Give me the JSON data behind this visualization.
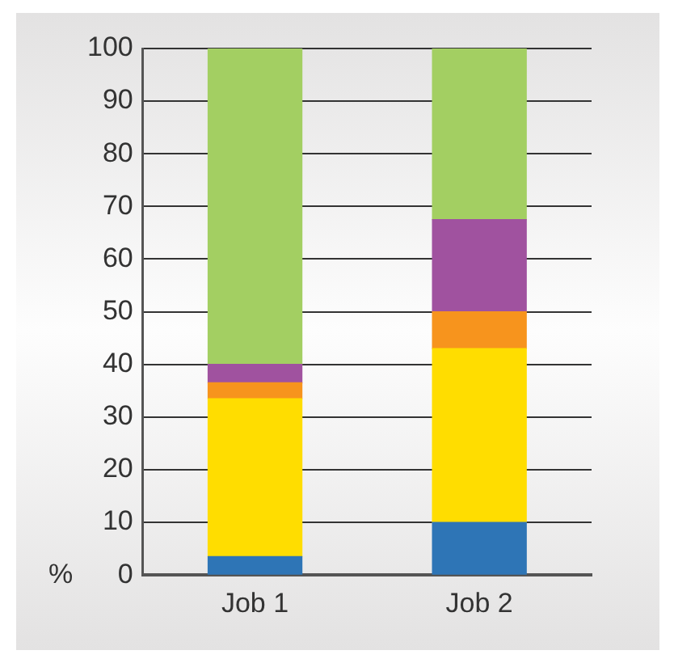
{
  "chart_data": {
    "type": "bar",
    "stacked": true,
    "ylabel": "%",
    "categories": [
      "Job 1",
      "Job 2"
    ],
    "series": [
      {
        "color": "#2e75b6",
        "values": [
          3.5,
          10
        ]
      },
      {
        "color": "#ffdd00",
        "values": [
          30,
          33
        ]
      },
      {
        "color": "#f7941d",
        "values": [
          3,
          7
        ]
      },
      {
        "color": "#a0529f",
        "values": [
          3.5,
          17.5
        ]
      },
      {
        "color": "#a3cf62",
        "values": [
          60,
          32.5
        ]
      }
    ],
    "ylim": [
      0,
      100
    ],
    "yticks": [
      0,
      10,
      20,
      30,
      40,
      50,
      60,
      70,
      80,
      90,
      100
    ],
    "grid": "y",
    "legend": false
  }
}
